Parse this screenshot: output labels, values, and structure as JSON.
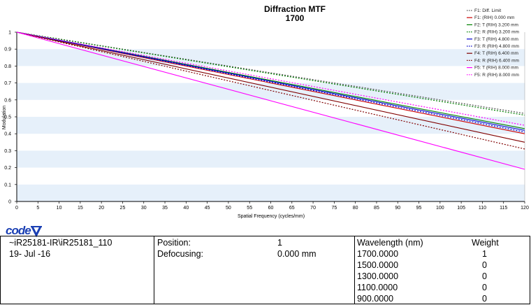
{
  "chart_data": {
    "type": "line",
    "title": "Diffraction MTF",
    "subtitle": "1700",
    "xlabel": "Spatial Frequency (cycles/mm)",
    "ylabel": "Modulation",
    "xlim": [
      0,
      120
    ],
    "ylim": [
      0,
      1
    ],
    "x_ticks": [
      0,
      5,
      10,
      15,
      20,
      25,
      30,
      35,
      40,
      45,
      50,
      55,
      60,
      65,
      70,
      75,
      80,
      85,
      90,
      95,
      100,
      105,
      110,
      115,
      120
    ],
    "y_ticks": [
      0,
      0.1,
      0.2,
      0.3,
      0.4,
      0.5,
      0.6,
      0.7,
      0.8,
      0.9,
      1
    ],
    "grid": "horizontal bands",
    "legend_position": "top-right",
    "x": [
      0,
      120
    ],
    "series": [
      {
        "name": "F1: Diff. Limit",
        "color": "#555555",
        "dash": "dotted",
        "values": [
          1.0,
          0.52
        ]
      },
      {
        "name": "F1: (RIH) 0.000 mm",
        "color": "#cc0000",
        "dash": "solid",
        "values": [
          1.0,
          0.4
        ]
      },
      {
        "name": "F2: T (RIH) 3.200 mm",
        "color": "#008000",
        "dash": "solid",
        "values": [
          1.0,
          0.43
        ]
      },
      {
        "name": "F2: R (RIH) 3.200 mm",
        "color": "#008000",
        "dash": "dotted",
        "values": [
          1.0,
          0.51
        ]
      },
      {
        "name": "F3: T (RIH) 4.800 mm",
        "color": "#0000cc",
        "dash": "solid",
        "values": [
          1.0,
          0.42
        ]
      },
      {
        "name": "F3: R (RIH) 4.800 mm",
        "color": "#0000cc",
        "dash": "dotted",
        "values": [
          1.0,
          0.41
        ]
      },
      {
        "name": "F4: T (RIH) 6.400 mm",
        "color": "#800000",
        "dash": "solid",
        "values": [
          1.0,
          0.35
        ]
      },
      {
        "name": "F4: R (RIH) 6.400 mm",
        "color": "#800000",
        "dash": "dotted",
        "values": [
          1.0,
          0.31
        ]
      },
      {
        "name": "F5: T (RIH) 8.000 mm",
        "color": "#ff00ff",
        "dash": "solid",
        "values": [
          1.0,
          0.19
        ]
      },
      {
        "name": "F5: R (RIH) 8.000 mm",
        "color": "#ff00ff",
        "dash": "dotted",
        "values": [
          1.0,
          0.45
        ]
      }
    ]
  },
  "logo_text": "code V",
  "footer": {
    "file_path": "~iR25181-IR\\iR25181_110",
    "date": "19- Jul -16",
    "position_label": "Position:",
    "position_value": "1",
    "defocusing_label": "Defocusing:",
    "defocusing_value": "0.000 mm",
    "wavelength_header": "Wavelength (nm)",
    "weight_header": "Weight",
    "wavelengths": [
      {
        "wl": "1700.0000",
        "weight": "1"
      },
      {
        "wl": "1500.0000",
        "weight": "0"
      },
      {
        "wl": "1300.0000",
        "weight": "0"
      },
      {
        "wl": "1100.0000",
        "weight": "0"
      },
      {
        "wl": "900.0000",
        "weight": "0"
      }
    ]
  }
}
